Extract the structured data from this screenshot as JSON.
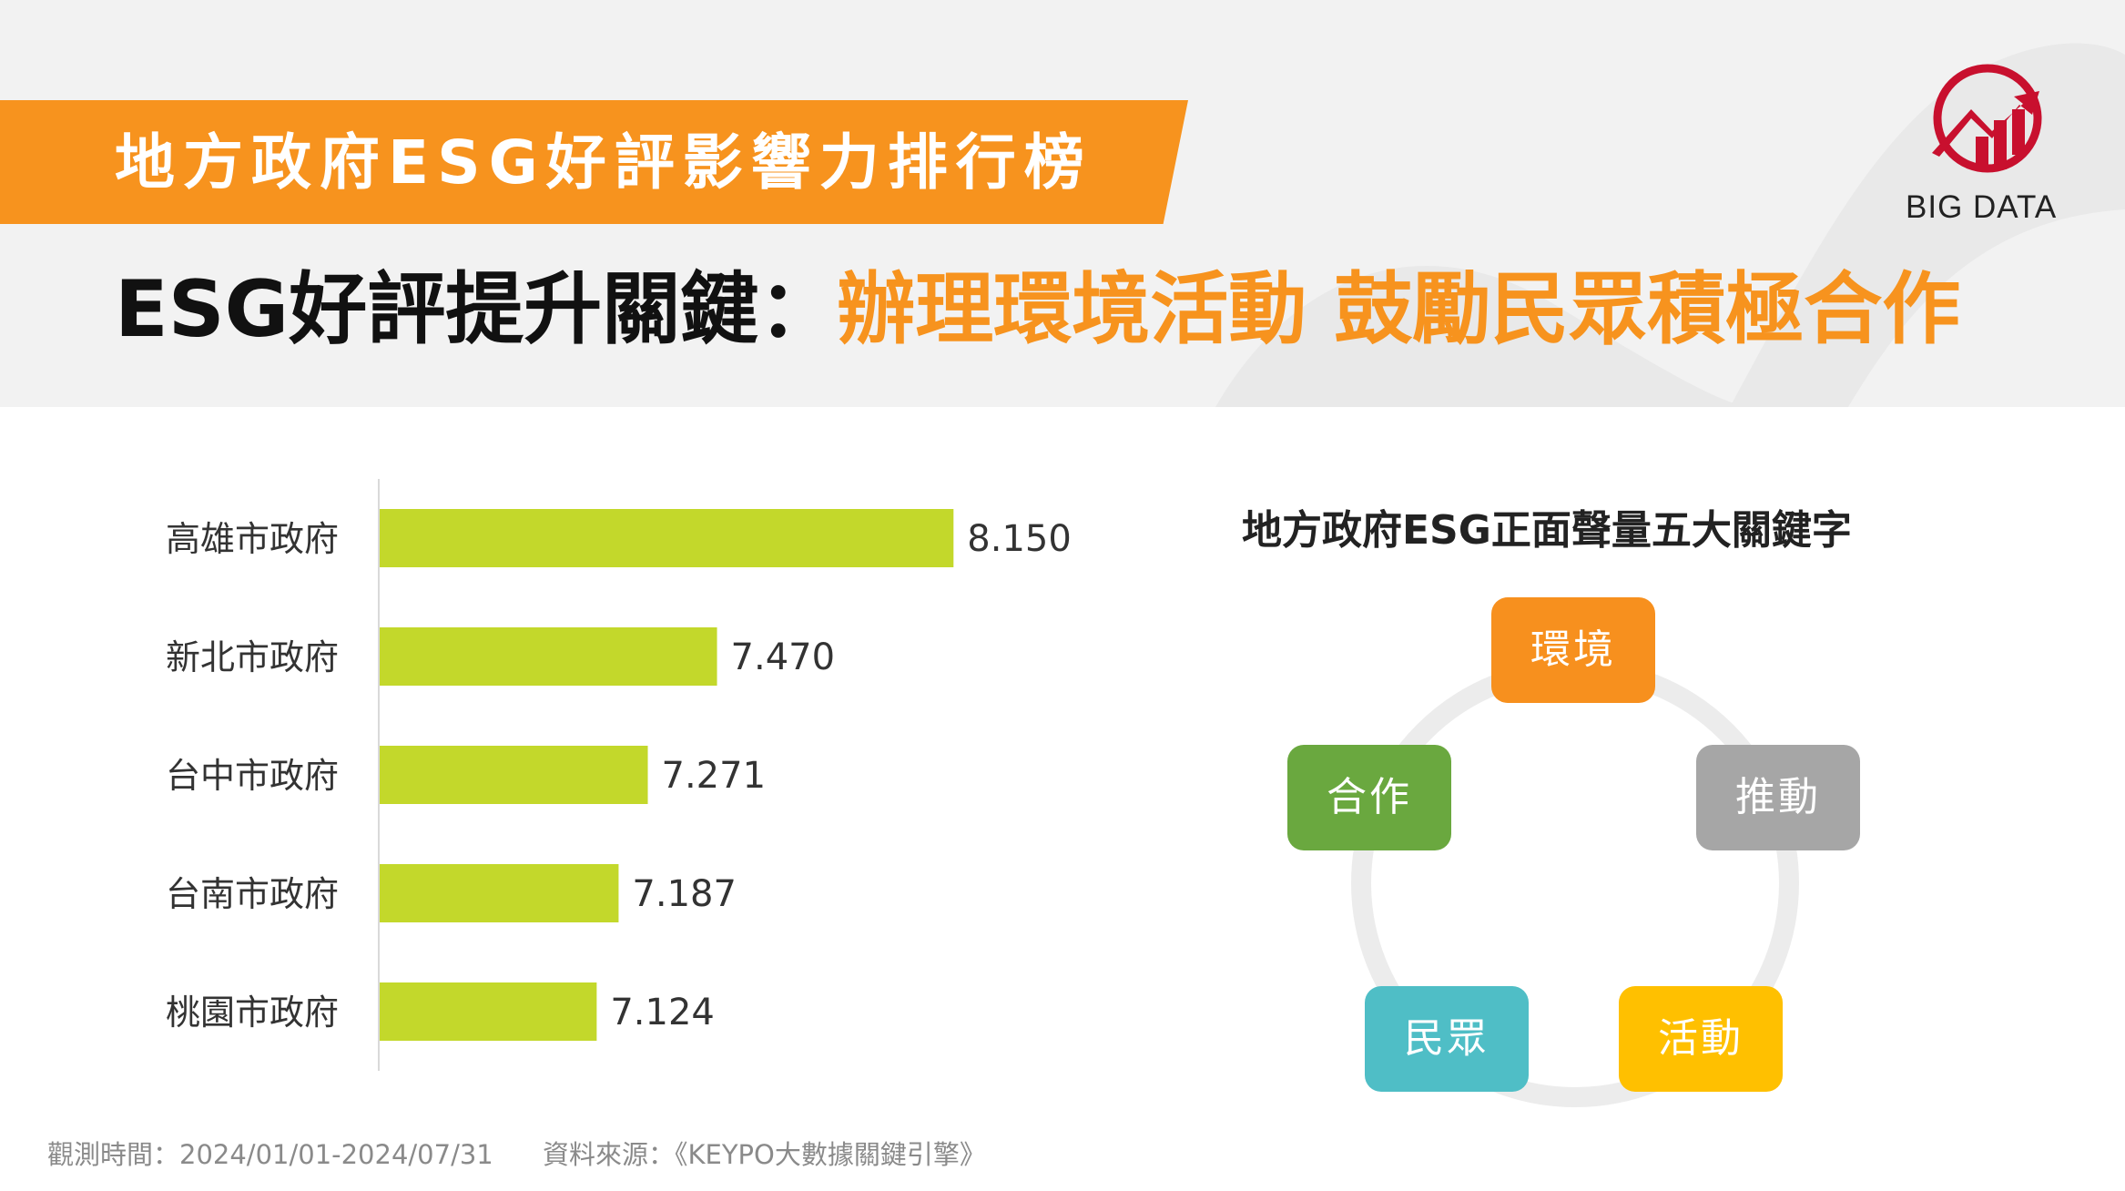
{
  "header": {
    "banner_title": "地方政府ESG好評影響力排行榜",
    "headline_black": "ESG好評提升關鍵：",
    "headline_orange": "辦理環境活動 鼓勵民眾積極合作"
  },
  "logo": {
    "text": "BIG DATA",
    "icon": "big-data-chart-logo"
  },
  "colors": {
    "accent_orange": "#f7931e",
    "bar_green": "#c3d82b",
    "kw_orange": "#f7901e",
    "kw_gray": "#a6a6a6",
    "kw_yellow": "#ffc000",
    "kw_teal": "#4fbec6",
    "kw_green": "#6aa83f"
  },
  "chart_data": [
    {
      "type": "bar",
      "orientation": "horizontal",
      "categories": [
        "高雄市政府",
        "新北市政府",
        "台中市政府",
        "台南市政府",
        "桃園市政府"
      ],
      "values": [
        8.15,
        7.47,
        7.271,
        7.187,
        7.124
      ],
      "value_labels": [
        "8.150",
        "7.470",
        "7.271",
        "7.187",
        "7.124"
      ],
      "title": "",
      "xlabel": "",
      "ylabel": "",
      "grid": false,
      "legend": "none"
    }
  ],
  "keywords": {
    "title": "地方政府ESG正面聲量五大關鍵字",
    "items": [
      "環境",
      "推動",
      "活動",
      "民眾",
      "合作"
    ]
  },
  "footer": {
    "period": "觀測時間：2024/01/01-2024/07/31",
    "source": "資料來源：《KEYPO大數據關鍵引擎》"
  }
}
